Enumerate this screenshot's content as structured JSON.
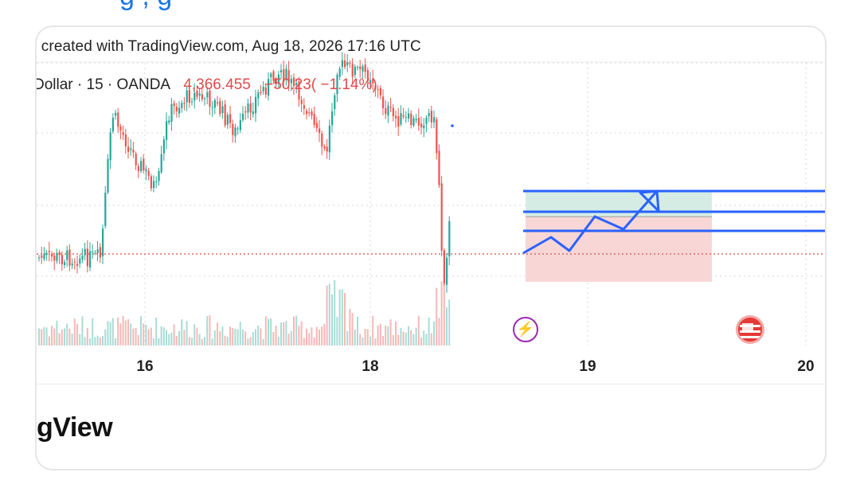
{
  "page": {
    "top_link_fragment": "g        ,  g"
  },
  "chart": {
    "caption": ") created with TradingView.com, Aug 18, 2026 17:16 UTC",
    "symbol": "Dollar · 15 · OANDA",
    "last_price": "4,366.455",
    "change": "−50.23( −1.14%)",
    "brand_fragment": "gView"
  },
  "colors": {
    "up": "#26a69a",
    "down": "#ef5350",
    "drawing": "#2962ff",
    "profit_zone": "#d5ece5",
    "loss_zone": "#f9d6d6",
    "price_line": "#e04b4b",
    "event_bolt": "#9c27b0",
    "event_flag": "#e53935"
  },
  "icons": {
    "event_marker_1": "lightning-bolt-icon",
    "event_marker_2": "us-flag-icon"
  },
  "chart_data": {
    "type": "candlestick",
    "interval": "15",
    "x_ticks": [
      "16",
      "18",
      "19",
      "20"
    ],
    "y_ticks": [],
    "current_price": 4366.455,
    "price_change": -50.23,
    "price_change_pct": -1.14,
    "grid": true,
    "legend_position": "top-left",
    "series": [
      {
        "name": "Dollar · 15 · OANDA",
        "type": "candlestick",
        "price_trend": [
          {
            "x": "15.6",
            "close_level": 0.2
          },
          {
            "x": "15.7",
            "close_level": 0.8
          },
          {
            "x": "15.9",
            "close_level": 0.62
          },
          {
            "x": "16.0",
            "close_level": 0.55
          },
          {
            "x": "16.1",
            "close_level": 0.48
          },
          {
            "x": "16.2",
            "close_level": 0.8
          },
          {
            "x": "16.4",
            "close_level": 0.88
          },
          {
            "x": "16.6",
            "close_level": 0.85
          },
          {
            "x": "16.8",
            "close_level": 0.72
          },
          {
            "x": "17.0",
            "close_level": 0.88
          },
          {
            "x": "17.2",
            "close_level": 0.98
          },
          {
            "x": "17.4",
            "close_level": 0.85
          },
          {
            "x": "17.6",
            "close_level": 0.62
          },
          {
            "x": "17.7",
            "close_level": 1.0
          },
          {
            "x": "17.85",
            "close_level": 0.98
          },
          {
            "x": "18.0",
            "close_level": 0.96
          },
          {
            "x": "18.1",
            "close_level": 0.84
          },
          {
            "x": "18.2",
            "close_level": 0.78
          },
          {
            "x": "18.4",
            "close_level": 0.76
          },
          {
            "x": "18.55",
            "close_level": 0.8
          },
          {
            "x": "18.6",
            "close_level": 0.55
          },
          {
            "x": "18.64",
            "close_level": 0.08
          },
          {
            "x": "18.7",
            "close_level": 0.36
          }
        ]
      }
    ],
    "volume": "histogram at bottom of pane, higher bars near 17.6–17.8 and 18.6",
    "drawings": {
      "long_position": {
        "entry_level": "current price",
        "profit_zone": "green, above entry",
        "loss_zone": "red, below entry",
        "target_lines": 3
      },
      "projection_path": "zigzag arrow up to top target"
    }
  }
}
